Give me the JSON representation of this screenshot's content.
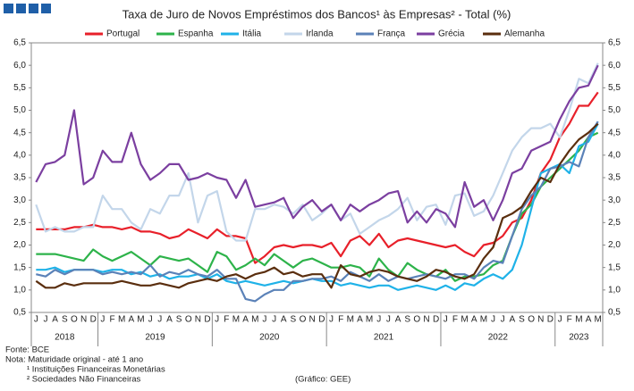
{
  "chart_data": {
    "type": "line",
    "title": "Taxa de Juro de Novos Empréstimos dos Bancos¹ às Empresas² - Total (%)",
    "categories": [
      "J",
      "J",
      "A",
      "S",
      "O",
      "N",
      "D",
      "J",
      "F",
      "M",
      "A",
      "M",
      "J",
      "J",
      "A",
      "S",
      "O",
      "N",
      "D",
      "J",
      "F",
      "M",
      "A",
      "M",
      "J",
      "J",
      "A",
      "S",
      "O",
      "N",
      "D",
      "J",
      "F",
      "M",
      "A",
      "M",
      "J",
      "J",
      "A",
      "S",
      "O",
      "N",
      "D",
      "J",
      "F",
      "M",
      "A",
      "M",
      "J",
      "J",
      "A",
      "S",
      "O",
      "N",
      "D",
      "J",
      "F",
      "M",
      "A",
      "M"
    ],
    "years": [
      "2018",
      "2019",
      "2020",
      "2021",
      "2022",
      "2023"
    ],
    "ylim": [
      0.5,
      6.5
    ],
    "y2lim": [
      0.5,
      6.5
    ],
    "yticks": [
      {
        "value": 0.5,
        "label": "0,5"
      },
      {
        "value": 1,
        "label": "1,0"
      },
      {
        "value": 1.5,
        "label": "1,5"
      },
      {
        "value": 2,
        "label": "2,0"
      },
      {
        "value": 2.5,
        "label": "2,5"
      },
      {
        "value": 3,
        "label": "3,0"
      },
      {
        "value": 3.5,
        "label": "3,5"
      },
      {
        "value": 4,
        "label": "4,0"
      },
      {
        "value": 4.5,
        "label": "4,5"
      },
      {
        "value": 5,
        "label": "5,0"
      },
      {
        "value": 5.5,
        "label": "5,5"
      },
      {
        "value": 6,
        "label": "6,0"
      },
      {
        "value": 6.5,
        "label": "6,5"
      }
    ],
    "y2ticks": [
      {
        "value": 0.5,
        "label": "0,5"
      },
      {
        "value": 1,
        "label": "1,0"
      },
      {
        "value": 1.5,
        "label": "1,5"
      },
      {
        "value": 2,
        "label": "2,0"
      },
      {
        "value": 2.5,
        "label": "2,5"
      },
      {
        "value": 3,
        "label": "3,0"
      },
      {
        "value": 3.5,
        "label": "3,5"
      },
      {
        "value": 4,
        "label": "4,0"
      },
      {
        "value": 4.5,
        "label": "4,5"
      },
      {
        "value": 5,
        "label": "5,0"
      },
      {
        "value": 5.5,
        "label": "5,5"
      },
      {
        "value": 6,
        "label": "6,0"
      },
      {
        "value": 6.5,
        "label": "6,5"
      }
    ],
    "series": [
      {
        "name": "Portugal",
        "color": "#e8202a",
        "values": [
          2.35,
          2.35,
          2.35,
          2.35,
          2.4,
          2.4,
          2.45,
          2.4,
          2.4,
          2.35,
          2.4,
          2.3,
          2.3,
          2.25,
          2.15,
          2.2,
          2.35,
          2.25,
          2.15,
          2.35,
          2.2,
          2.2,
          2.15,
          1.6,
          1.75,
          1.95,
          2.0,
          1.95,
          2.0,
          2.0,
          1.95,
          2.05,
          1.75,
          2.1,
          2.2,
          2.0,
          2.25,
          1.95,
          2.1,
          2.15,
          2.1,
          2.05,
          2.0,
          1.95,
          2.0,
          1.85,
          1.75,
          2.0,
          2.05,
          2.2,
          2.5,
          2.6,
          3.0,
          3.6,
          3.9,
          4.4,
          4.7,
          5.1,
          5.1,
          5.4
        ]
      },
      {
        "name": "Espanha",
        "color": "#2db34a",
        "values": [
          1.8,
          1.8,
          1.8,
          1.75,
          1.7,
          1.65,
          1.9,
          1.75,
          1.65,
          1.75,
          1.85,
          1.7,
          1.55,
          1.75,
          1.7,
          1.65,
          1.7,
          1.55,
          1.4,
          1.85,
          1.75,
          1.45,
          1.55,
          1.7,
          1.55,
          1.8,
          1.65,
          1.5,
          1.65,
          1.7,
          1.6,
          1.5,
          1.5,
          1.55,
          1.5,
          1.3,
          1.7,
          1.45,
          1.3,
          1.6,
          1.45,
          1.35,
          1.3,
          1.45,
          1.2,
          1.3,
          1.3,
          1.35,
          1.55,
          1.65,
          2.2,
          2.7,
          2.9,
          3.3,
          3.5,
          3.7,
          3.9,
          4.1,
          4.4,
          4.5
        ]
      },
      {
        "name": "Itália",
        "color": "#1fb2e8",
        "values": [
          1.45,
          1.45,
          1.5,
          1.4,
          1.45,
          1.45,
          1.45,
          1.4,
          1.45,
          1.45,
          1.35,
          1.4,
          1.3,
          1.35,
          1.25,
          1.3,
          1.3,
          1.35,
          1.25,
          1.35,
          1.2,
          1.15,
          1.2,
          1.15,
          1.1,
          1.15,
          1.2,
          1.15,
          1.2,
          1.25,
          1.2,
          1.2,
          1.1,
          1.15,
          1.1,
          1.05,
          1.1,
          1.1,
          1.0,
          1.05,
          1.1,
          1.05,
          1.0,
          1.1,
          1.0,
          1.15,
          1.1,
          1.25,
          1.35,
          1.25,
          1.45,
          2.0,
          2.8,
          3.6,
          3.7,
          3.8,
          3.6,
          4.2,
          4.3,
          4.7
        ]
      },
      {
        "name": "Irlanda",
        "color": "#c3d6ea",
        "values": [
          2.9,
          2.3,
          2.4,
          2.3,
          2.3,
          2.4,
          2.4,
          3.1,
          2.8,
          2.8,
          2.5,
          2.35,
          2.8,
          2.7,
          3.1,
          3.1,
          3.6,
          2.5,
          3.1,
          3.2,
          2.3,
          2.1,
          2.1,
          2.8,
          2.8,
          2.9,
          2.85,
          2.7,
          2.9,
          2.55,
          2.7,
          2.9,
          2.55,
          2.7,
          2.25,
          2.4,
          2.55,
          2.65,
          2.8,
          3.05,
          2.55,
          2.85,
          2.9,
          2.45,
          3.1,
          3.15,
          2.65,
          2.75,
          3.1,
          3.6,
          4.1,
          4.4,
          4.6,
          4.6,
          4.7,
          4.4,
          5.0,
          5.7,
          5.6,
          6.05
        ]
      },
      {
        "name": "França",
        "color": "#5b82b8",
        "values": [
          1.35,
          1.3,
          1.45,
          1.35,
          1.45,
          1.45,
          1.45,
          1.35,
          1.4,
          1.35,
          1.4,
          1.35,
          1.55,
          1.3,
          1.4,
          1.35,
          1.45,
          1.35,
          1.3,
          1.45,
          1.25,
          1.25,
          0.8,
          0.75,
          0.9,
          1.0,
          1.0,
          1.2,
          1.2,
          1.25,
          1.25,
          1.3,
          1.2,
          1.4,
          1.3,
          1.2,
          1.35,
          1.2,
          1.3,
          1.25,
          1.3,
          1.35,
          1.3,
          1.25,
          1.35,
          1.35,
          1.25,
          1.5,
          1.65,
          1.6,
          2.2,
          2.8,
          3.1,
          3.3,
          3.7,
          3.75,
          3.85,
          3.75,
          4.4,
          4.75
        ]
      },
      {
        "name": "Grécia",
        "color": "#7b3fa0",
        "values": [
          3.4,
          3.8,
          3.85,
          4.0,
          5.0,
          3.35,
          3.5,
          4.1,
          3.85,
          3.85,
          4.5,
          3.8,
          3.45,
          3.6,
          3.8,
          3.8,
          3.45,
          3.5,
          3.6,
          3.5,
          3.45,
          3.05,
          3.45,
          2.85,
          2.9,
          2.95,
          3.05,
          2.6,
          2.85,
          3.0,
          2.75,
          2.9,
          2.55,
          2.9,
          2.75,
          2.9,
          3.0,
          3.15,
          3.2,
          2.5,
          2.75,
          2.5,
          2.8,
          2.7,
          2.4,
          3.4,
          2.85,
          3.0,
          2.55,
          3.0,
          3.6,
          3.7,
          4.1,
          4.2,
          4.3,
          4.8,
          5.2,
          5.5,
          5.55,
          6.0
        ]
      },
      {
        "name": "Alemanha",
        "color": "#5a2e0e",
        "values": [
          1.2,
          1.05,
          1.05,
          1.15,
          1.1,
          1.15,
          1.15,
          1.15,
          1.15,
          1.2,
          1.15,
          1.1,
          1.1,
          1.15,
          1.1,
          1.05,
          1.15,
          1.2,
          1.25,
          1.2,
          1.3,
          1.35,
          1.25,
          1.35,
          1.4,
          1.5,
          1.35,
          1.4,
          1.3,
          1.35,
          1.35,
          1.05,
          1.55,
          1.35,
          1.3,
          1.4,
          1.45,
          1.4,
          1.3,
          1.25,
          1.2,
          1.3,
          1.45,
          1.4,
          1.3,
          1.25,
          1.35,
          1.7,
          1.95,
          2.6,
          2.7,
          2.85,
          3.2,
          3.5,
          3.4,
          3.8,
          4.1,
          4.35,
          4.5,
          4.7
        ]
      }
    ],
    "notes": [
      "Fonte: BCE",
      "Nota: Maturidade original - até 1 ano",
      "¹ Instituições Financeiras Monetárias",
      "² Sociedades Não Financeiras"
    ],
    "credit": "(Gráfico: GEE)"
  }
}
